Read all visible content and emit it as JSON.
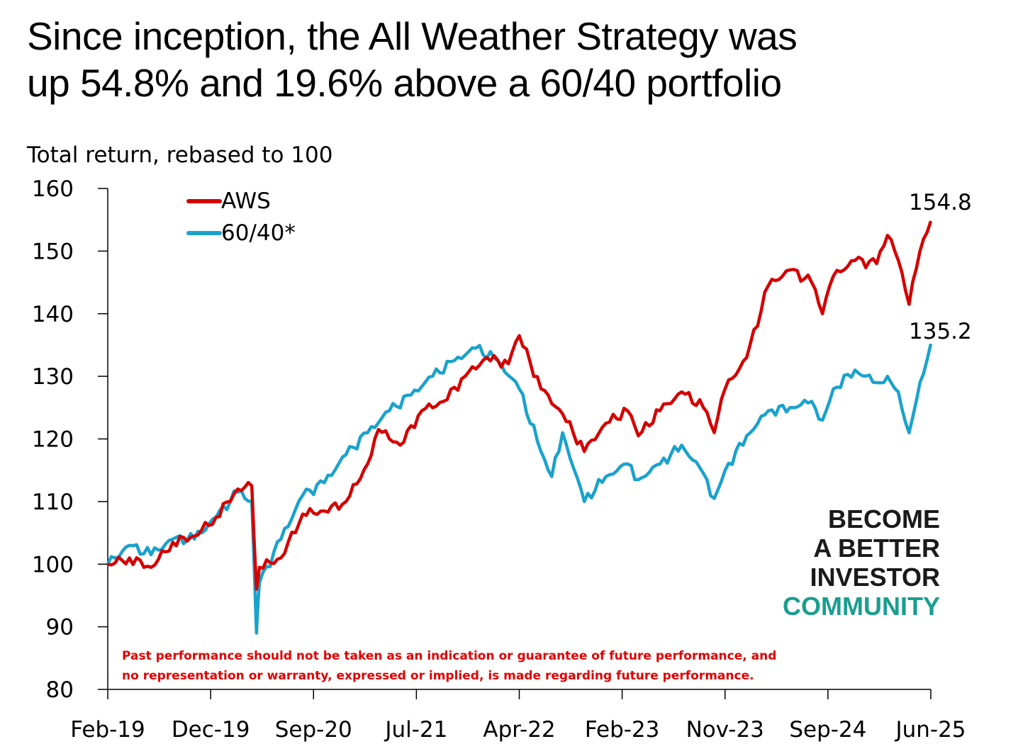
{
  "title": {
    "line1": "Since inception, the All Weather Strategy was",
    "line2": "up 54.8% and 19.6% above a 60/40 portfolio"
  },
  "brand": {
    "line1": "BECOME",
    "line2": "A BETTER",
    "line3": "INVESTOR",
    "line4": "COMMUNITY",
    "dark_color": "#1a1a1a",
    "accent_color": "#1a9e8f"
  },
  "chart_data": {
    "type": "line",
    "ylabel": "Total return, rebased to 100",
    "ylim": [
      80,
      160
    ],
    "yticks": [
      80,
      90,
      100,
      110,
      120,
      130,
      140,
      150,
      160
    ],
    "xticks": [
      "Feb-19",
      "Dec-19",
      "Sep-20",
      "Jul-21",
      "Apr-22",
      "Feb-23",
      "Nov-23",
      "Sep-24",
      "Jun-25"
    ],
    "xlim": [
      "2019-02",
      "2025-06"
    ],
    "grid": false,
    "legend_position": "top-left",
    "series": [
      {
        "name": "AWS",
        "color": "#d40000",
        "end_label": "154.8",
        "points": [
          [
            "2019-02",
            100
          ],
          [
            "2019-04",
            101
          ],
          [
            "2019-06",
            99.5
          ],
          [
            "2019-08",
            103.5
          ],
          [
            "2019-10",
            104.5
          ],
          [
            "2019-12",
            107.5
          ],
          [
            "2020-02",
            112
          ],
          [
            "2020-03-10",
            112.5
          ],
          [
            "2020-03-23",
            96
          ],
          [
            "2020-04",
            99.5
          ],
          [
            "2020-06",
            101
          ],
          [
            "2020-08",
            108
          ],
          [
            "2020-10",
            108.5
          ],
          [
            "2020-12",
            110
          ],
          [
            "2021-02",
            116
          ],
          [
            "2021-03",
            121.5
          ],
          [
            "2021-05",
            119
          ],
          [
            "2021-07",
            124.5
          ],
          [
            "2021-09",
            126
          ],
          [
            "2021-11",
            130
          ],
          [
            "2022-01",
            133
          ],
          [
            "2022-03",
            132
          ],
          [
            "2022-04",
            136.5
          ],
          [
            "2022-06",
            128
          ],
          [
            "2022-08",
            124
          ],
          [
            "2022-10",
            118
          ],
          [
            "2022-12",
            122.5
          ],
          [
            "2023-02",
            124.5
          ],
          [
            "2023-03",
            120.5
          ],
          [
            "2023-05",
            124.5
          ],
          [
            "2023-07",
            127.5
          ],
          [
            "2023-09",
            125
          ],
          [
            "2023-10",
            121
          ],
          [
            "2023-11",
            128
          ],
          [
            "2024-01",
            133
          ],
          [
            "2024-03",
            144.5
          ],
          [
            "2024-05",
            147
          ],
          [
            "2024-07",
            145
          ],
          [
            "2024-08",
            140
          ],
          [
            "2024-09",
            146
          ],
          [
            "2024-11",
            148.5
          ],
          [
            "2025-01",
            148
          ],
          [
            "2025-02",
            152.5
          ],
          [
            "2025-03",
            148.5
          ],
          [
            "2025-04",
            141.5
          ],
          [
            "2025-05",
            150
          ],
          [
            "2025-06",
            154.8
          ]
        ]
      },
      {
        "name": "60/40*",
        "color": "#1aa2cc",
        "end_label": "135.2",
        "points": [
          [
            "2019-02",
            100
          ],
          [
            "2019-04",
            103
          ],
          [
            "2019-06",
            101.5
          ],
          [
            "2019-08",
            104
          ],
          [
            "2019-10",
            104
          ],
          [
            "2019-12",
            107.5
          ],
          [
            "2020-02",
            111.5
          ],
          [
            "2020-03-10",
            110
          ],
          [
            "2020-03-23",
            89
          ],
          [
            "2020-04",
            97
          ],
          [
            "2020-06",
            104
          ],
          [
            "2020-08",
            111
          ],
          [
            "2020-10",
            113
          ],
          [
            "2020-12",
            117.5
          ],
          [
            "2021-02",
            121
          ],
          [
            "2021-04",
            124.5
          ],
          [
            "2021-06",
            127
          ],
          [
            "2021-08",
            130
          ],
          [
            "2021-10",
            132.5
          ],
          [
            "2021-12",
            134.5
          ],
          [
            "2022-02",
            132.5
          ],
          [
            "2022-04",
            128
          ],
          [
            "2022-06",
            118
          ],
          [
            "2022-07",
            114
          ],
          [
            "2022-08",
            121
          ],
          [
            "2022-10",
            110
          ],
          [
            "2022-12",
            114
          ],
          [
            "2023-02",
            116
          ],
          [
            "2023-03",
            113.5
          ],
          [
            "2023-05",
            116
          ],
          [
            "2023-07",
            119
          ],
          [
            "2023-09",
            114.5
          ],
          [
            "2023-10",
            110.5
          ],
          [
            "2023-11",
            115
          ],
          [
            "2024-01",
            120.5
          ],
          [
            "2024-03",
            124.5
          ],
          [
            "2024-05",
            125
          ],
          [
            "2024-07",
            126
          ],
          [
            "2024-08",
            123
          ],
          [
            "2024-09",
            128
          ],
          [
            "2024-11",
            131
          ],
          [
            "2025-01",
            129
          ],
          [
            "2025-02",
            130
          ],
          [
            "2025-03",
            127.5
          ],
          [
            "2025-04",
            121
          ],
          [
            "2025-05",
            129
          ],
          [
            "2025-06",
            135.2
          ]
        ]
      }
    ],
    "annotation": {
      "line1": "Past performance should not be taken as an indication or guarantee of future performance, and",
      "line2": "no representation or warranty, expressed or implied, is made regarding future performance.",
      "color": "#e00000"
    }
  }
}
